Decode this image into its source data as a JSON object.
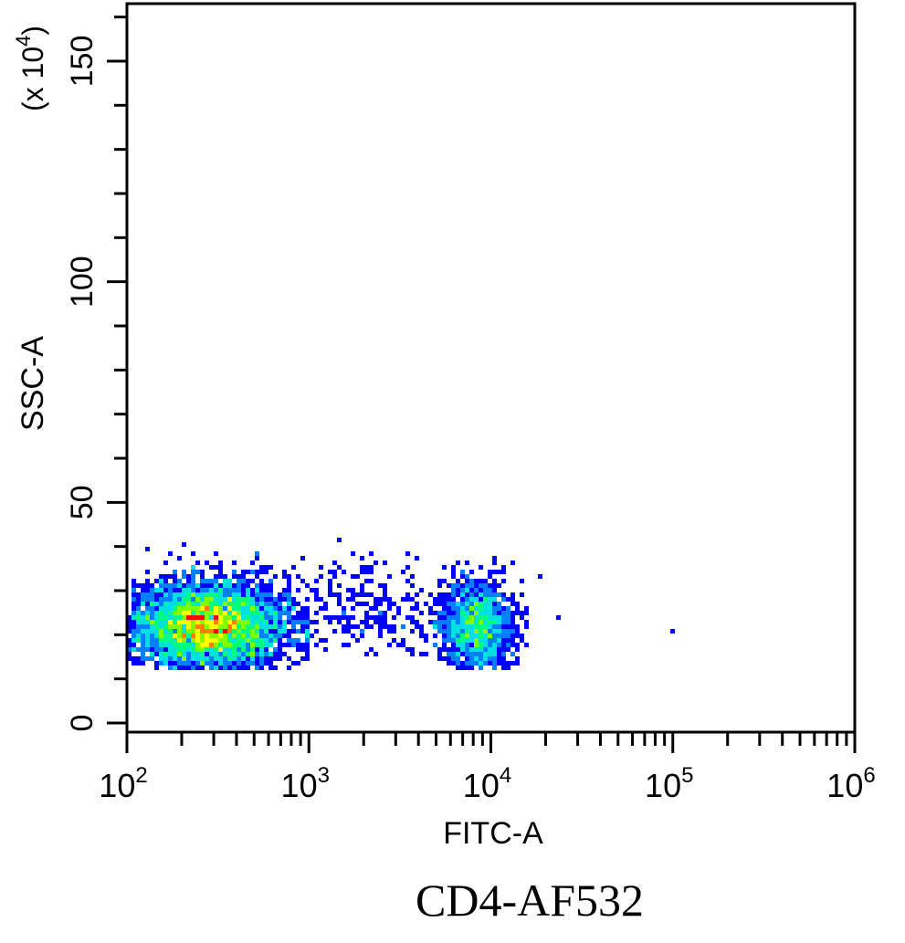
{
  "chart_data": {
    "type": "heatmap",
    "subtype": "flow-cytometry density dot plot",
    "title": "",
    "xlabel": "FITC-A",
    "ylabel": "SSC-A",
    "y_multiplier_label": "(x 10",
    "y_multiplier_exp": "4",
    "caption": "CD4-AF532",
    "x_scale": "log",
    "xlim": [
      100,
      1000000
    ],
    "ylim": [
      0,
      163
    ],
    "x_ticks": [
      {
        "base": "10",
        "exp": "2"
      },
      {
        "base": "10",
        "exp": "3"
      },
      {
        "base": "10",
        "exp": "4"
      },
      {
        "base": "10",
        "exp": "5"
      },
      {
        "base": "10",
        "exp": "6"
      }
    ],
    "y_ticks": [
      "0",
      "50",
      "100",
      "150"
    ],
    "y_minor_step": 10,
    "grid": false,
    "colormap": [
      "#0000ff",
      "#0080ff",
      "#00e0e0",
      "#00ff80",
      "#80ff00",
      "#ffff00",
      "#ff8000",
      "#ff0000"
    ],
    "populations": [
      {
        "log10_fitc_center": 2.45,
        "log10_fitc_sd": 0.22,
        "ssc_center": 22,
        "ssc_sd": 5,
        "ssc_range": [
          13,
          41
        ],
        "log10_fitc_range": [
          2.0,
          3.0
        ],
        "relative_events": 6000
      },
      {
        "log10_fitc_center": 3.92,
        "log10_fitc_sd": 0.1,
        "ssc_center": 22,
        "ssc_sd": 5,
        "ssc_range": [
          13,
          40
        ],
        "log10_fitc_range": [
          3.6,
          4.2
        ],
        "relative_events": 1500
      },
      {
        "log10_fitc_center": 3.3,
        "log10_fitc_sd": 0.3,
        "ssc_center": 26,
        "ssc_sd": 6,
        "ssc_range": [
          16,
          41
        ],
        "log10_fitc_range": [
          2.9,
          4.4
        ],
        "relative_events": 300
      }
    ],
    "outliers": [
      {
        "fitc": 100000,
        "ssc": 21
      },
      {
        "fitc": 23000,
        "ssc": 24
      },
      {
        "fitc": 19000,
        "ssc": 33
      }
    ]
  }
}
